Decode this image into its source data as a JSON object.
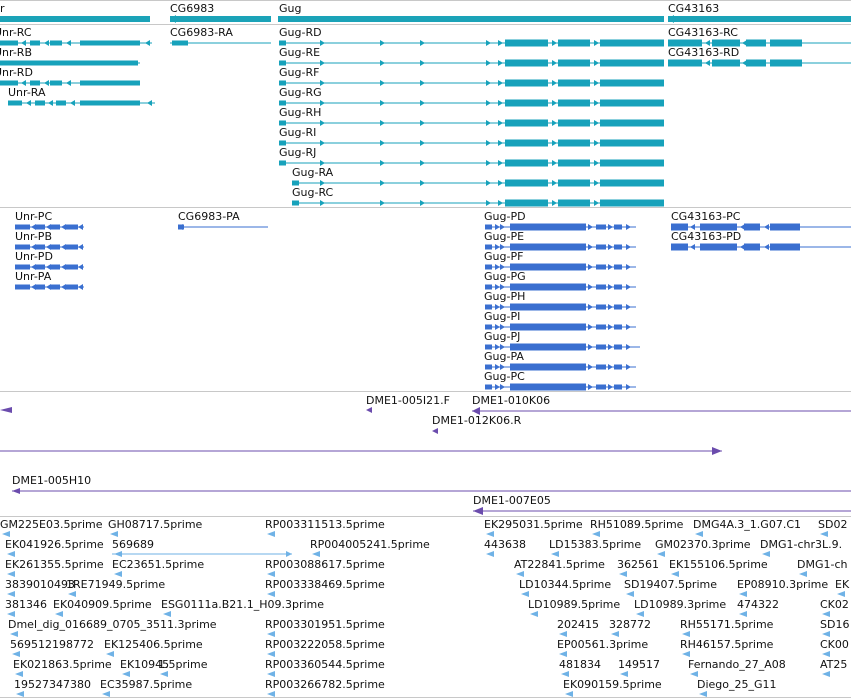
{
  "colors": {
    "track_gene": "#1ba3b8",
    "track_transcript": "#17a2bb",
    "track_cdna": "#3a6fd0",
    "track_bac": "#6b4cad",
    "track_est": "#6fb2e6",
    "separator": "#c8c8c8"
  },
  "gene_track": {
    "labels": [
      {
        "id": "unr-partial",
        "text": "r"
      },
      {
        "id": "cg6983",
        "text": "CG6983"
      },
      {
        "id": "gug",
        "text": "Gug"
      },
      {
        "id": "cg43163",
        "text": "CG43163"
      }
    ],
    "transcripts": [
      {
        "text": "Unr-RC"
      },
      {
        "text": "Unr-RB"
      },
      {
        "text": "Unr-RD"
      },
      {
        "text": "Unr-RA"
      },
      {
        "text": "CG6983-RA"
      },
      {
        "text": "Gug-RD"
      },
      {
        "text": "Gug-RE"
      },
      {
        "text": "Gug-RF"
      },
      {
        "text": "Gug-RG"
      },
      {
        "text": "Gug-RH"
      },
      {
        "text": "Gug-RI"
      },
      {
        "text": "Gug-RJ"
      },
      {
        "text": "Gug-RA"
      },
      {
        "text": "Gug-RC"
      },
      {
        "text": "CG43163-RC"
      },
      {
        "text": "CG43163-RD"
      }
    ]
  },
  "cdna_track": {
    "labels": [
      {
        "text": "Unr-PC"
      },
      {
        "text": "Unr-PB"
      },
      {
        "text": "Unr-PD"
      },
      {
        "text": "Unr-PA"
      },
      {
        "text": "CG6983-PA"
      },
      {
        "text": "Gug-PD"
      },
      {
        "text": "Gug-PE"
      },
      {
        "text": "Gug-PF"
      },
      {
        "text": "Gug-PG"
      },
      {
        "text": "Gug-PH"
      },
      {
        "text": "Gug-PI"
      },
      {
        "text": "Gug-PJ"
      },
      {
        "text": "Gug-PA"
      },
      {
        "text": "Gug-PC"
      },
      {
        "text": "CG43163-PC"
      },
      {
        "text": "CG43163-PD"
      }
    ]
  },
  "bac_track": {
    "labels": [
      {
        "text": "DME1-005I21.F"
      },
      {
        "text": "DME1-010K06"
      },
      {
        "text": "DME1-012K06.R"
      },
      {
        "text": "DME1-005H10"
      },
      {
        "text": "DME1-007E05"
      }
    ]
  },
  "est_track": {
    "labels": [
      "GM225E03.5prime",
      "GH08717.5prime",
      "RP003311513.5prime",
      "EK295031.5prime",
      "RH51089.5prime",
      "DMG4A.3_1.G07.C1",
      "SD02",
      "EK041926.5prime",
      "569689",
      "RP004005241.5prime",
      "443638",
      "LD15383.5prime",
      "GM02370.3prime",
      "DMG1-chr3L.9.",
      "EK261355.5prime",
      "EC23651.5prime",
      "RP003088617.5prime",
      "AT22841.5prime",
      "362561",
      "EK155106.5prime",
      "DMG1-ch",
      "3839010493",
      "1RE71949.5prime",
      "RP003338469.5prime",
      "LD10344.5prime",
      "SD19407.5prime",
      "EP08910.3prime",
      "EK",
      "381346",
      "EK040909.5prime",
      "ESG0111a.B21.1_H09.3prime",
      "LD10989.5prime",
      "LD10989.3prime",
      "474322",
      "CK02",
      "Dmel_dig_016689_0705_3511.3prime",
      "RP003301951.5prime",
      "202415",
      "328772",
      "RH55171.5prime",
      "SD16",
      "569512198772",
      "EK125406.5prime",
      "RP003222058.5prime",
      "EP00561.3prime",
      "RH46157.5prime",
      "CK00",
      "EK021863.5prime",
      "EK10945",
      "1.5prime",
      "RP003360544.5prime",
      "481834",
      "149517",
      "Fernando_27_A08",
      "AT25",
      "19527347380",
      "EC35987.5prime",
      "RP003266782.5prime",
      "EK090159.5prime",
      "Diego_25_G11"
    ]
  }
}
